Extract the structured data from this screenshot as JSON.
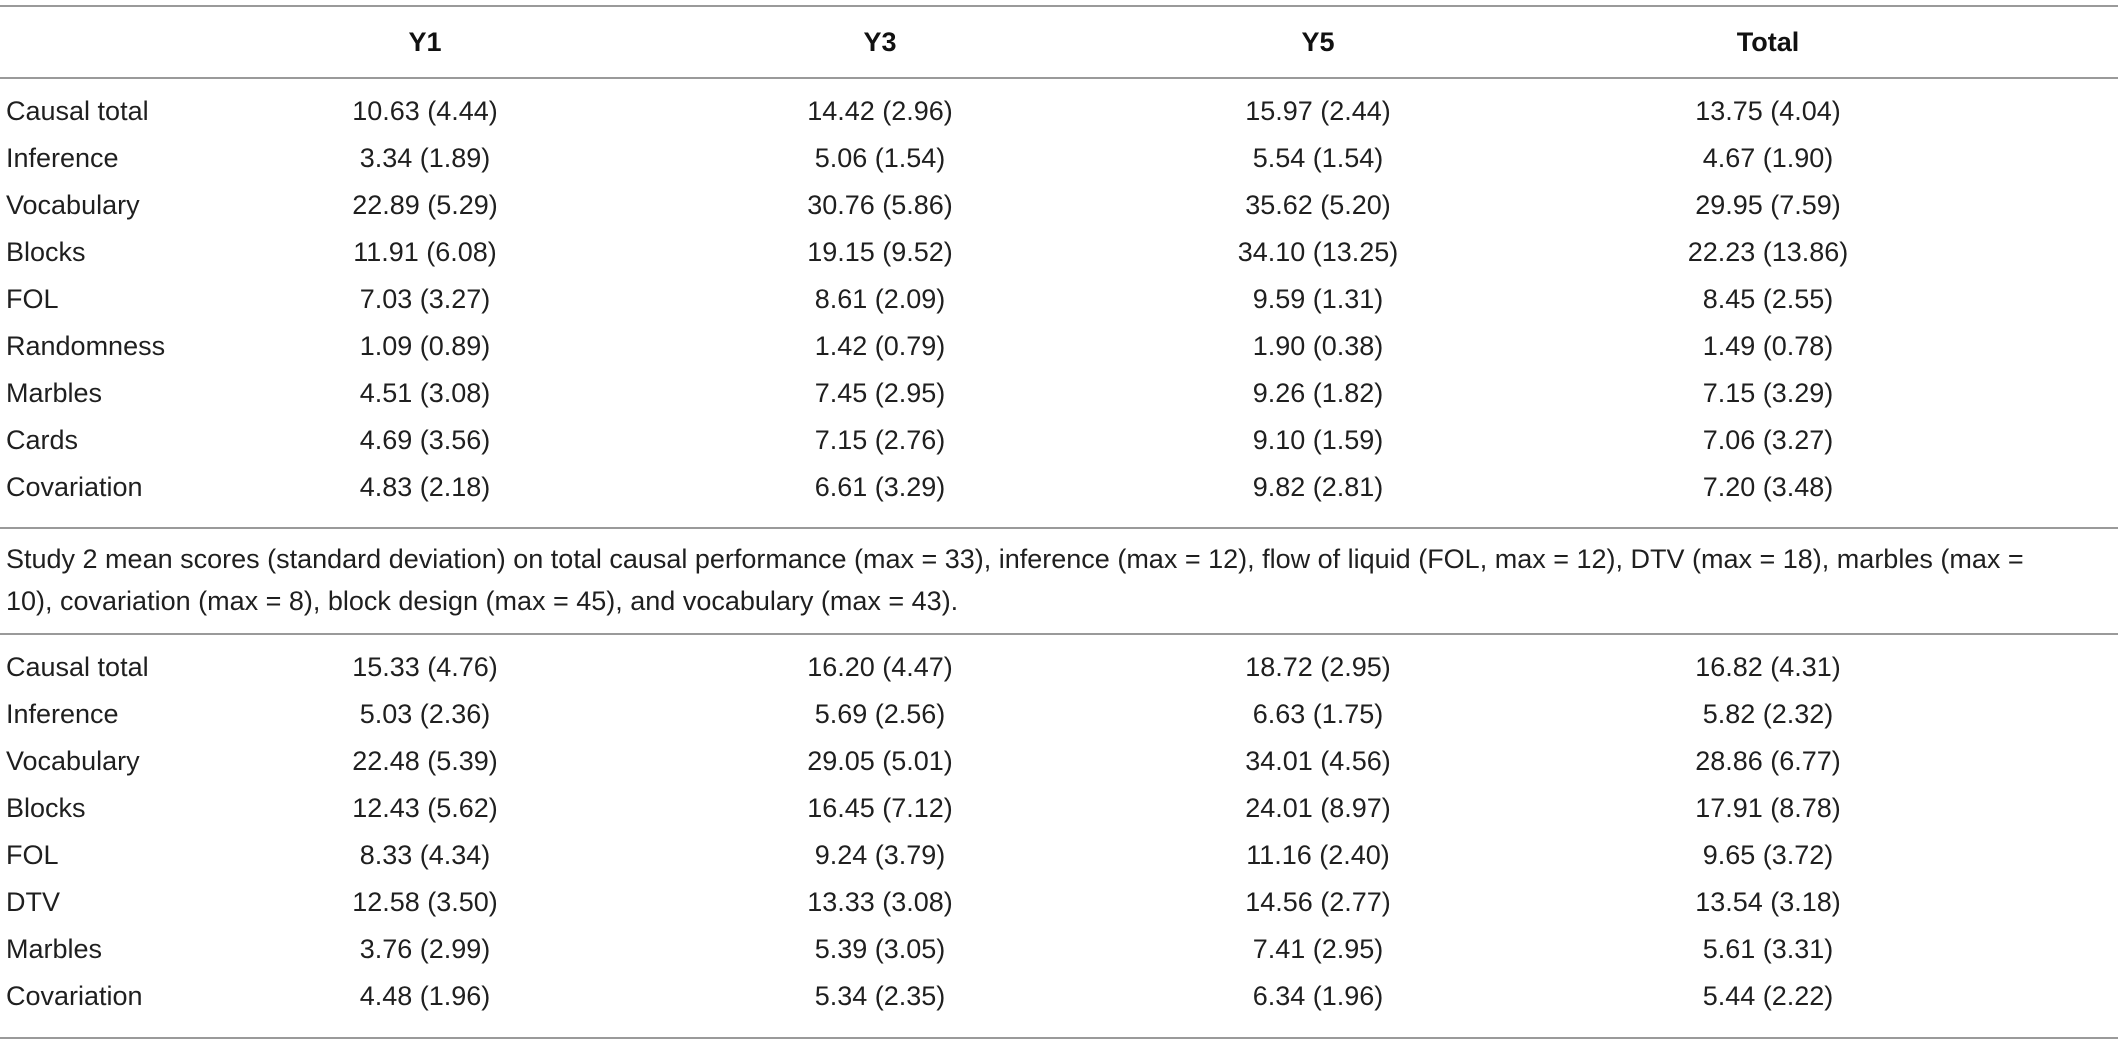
{
  "columns": [
    "",
    "Y1",
    "Y3",
    "Y5",
    "Total"
  ],
  "study1_rows": [
    {
      "label": "Causal total",
      "y1": "10.63 (4.44)",
      "y3": "14.42 (2.96)",
      "y5": "15.97 (2.44)",
      "total": "13.75 (4.04)"
    },
    {
      "label": "Inference",
      "y1": "3.34 (1.89)",
      "y3": "5.06 (1.54)",
      "y5": "5.54 (1.54)",
      "total": "4.67 (1.90)"
    },
    {
      "label": "Vocabulary",
      "y1": "22.89 (5.29)",
      "y3": "30.76 (5.86)",
      "y5": "35.62 (5.20)",
      "total": "29.95 (7.59)"
    },
    {
      "label": "Blocks",
      "y1": "11.91 (6.08)",
      "y3": "19.15 (9.52)",
      "y5": "34.10 (13.25)",
      "total": "22.23 (13.86)"
    },
    {
      "label": "FOL",
      "y1": "7.03 (3.27)",
      "y3": "8.61 (2.09)",
      "y5": "9.59 (1.31)",
      "total": "8.45 (2.55)"
    },
    {
      "label": "Randomness",
      "y1": "1.09 (0.89)",
      "y3": "1.42 (0.79)",
      "y5": "1.90 (0.38)",
      "total": "1.49 (0.78)"
    },
    {
      "label": "Marbles",
      "y1": "4.51 (3.08)",
      "y3": "7.45 (2.95)",
      "y5": "9.26 (1.82)",
      "total": "7.15 (3.29)"
    },
    {
      "label": "Cards",
      "y1": "4.69 (3.56)",
      "y3": "7.15 (2.76)",
      "y5": "9.10 (1.59)",
      "total": "7.06 (3.27)"
    },
    {
      "label": "Covariation",
      "y1": "4.83 (2.18)",
      "y3": "6.61 (3.29)",
      "y5": "9.82 (2.81)",
      "total": "7.20 (3.48)"
    }
  ],
  "caption": "Study 2 mean scores (standard deviation) on total causal performance (max = 33), inference (max = 12), flow of liquid (FOL, max = 12), DTV (max = 18), marbles (max = 10), covariation (max = 8), block design (max = 45), and vocabulary (max = 43).",
  "study2_rows": [
    {
      "label": "Causal total",
      "y1": "15.33 (4.76)",
      "y3": "16.20 (4.47)",
      "y5": "18.72 (2.95)",
      "total": "16.82 (4.31)"
    },
    {
      "label": "Inference",
      "y1": "5.03 (2.36)",
      "y3": "5.69 (2.56)",
      "y5": "6.63 (1.75)",
      "total": "5.82 (2.32)"
    },
    {
      "label": "Vocabulary",
      "y1": "22.48 (5.39)",
      "y3": "29.05 (5.01)",
      "y5": "34.01 (4.56)",
      "total": "28.86 (6.77)"
    },
    {
      "label": "Blocks",
      "y1": "12.43 (5.62)",
      "y3": "16.45 (7.12)",
      "y5": "24.01 (8.97)",
      "total": "17.91 (8.78)"
    },
    {
      "label": "FOL",
      "y1": "8.33 (4.34)",
      "y3": "9.24 (3.79)",
      "y5": "11.16 (2.40)",
      "total": "9.65 (3.72)"
    },
    {
      "label": "DTV",
      "y1": "12.58 (3.50)",
      "y3": "13.33 (3.08)",
      "y5": "14.56 (2.77)",
      "total": "13.54 (3.18)"
    },
    {
      "label": "Marbles",
      "y1": "3.76 (2.99)",
      "y3": "5.39 (3.05)",
      "y5": "7.41 (2.95)",
      "total": "5.61 (3.31)"
    },
    {
      "label": "Covariation",
      "y1": "4.48 (1.96)",
      "y3": "5.34 (2.35)",
      "y5": "6.34 (1.96)",
      "total": "5.44 (2.22)"
    }
  ]
}
